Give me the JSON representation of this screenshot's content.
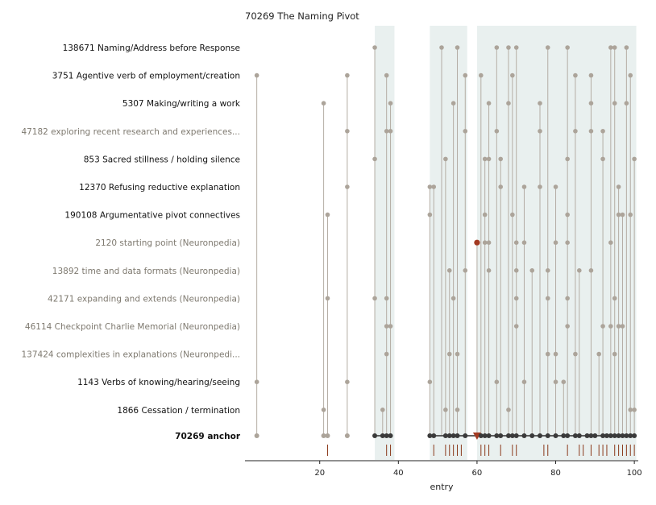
{
  "chart_data": {
    "type": "scatter",
    "title": "70269  The Naming Pivot",
    "xlabel": "entry",
    "ylabel": "",
    "xlim": [
      1,
      101
    ],
    "xticks": [
      20,
      40,
      60,
      80,
      100
    ],
    "grid": false,
    "colors": {
      "row_marker": "#aca49a",
      "stem": "#b4ada4",
      "anchor_marker": "#3a3a3a",
      "highlight": "#a33a22",
      "band": "#e9f0ef",
      "rug": "#8b3a1c",
      "label_dark": "#111111",
      "label_muted": "#7e796f"
    },
    "shaded_ranges": [
      [
        34,
        39
      ],
      [
        48,
        57.5
      ],
      [
        60,
        100.5
      ]
    ],
    "highlight_entry": 60,
    "rug_entries": [
      22,
      37,
      38,
      49,
      52,
      53,
      54,
      55,
      56,
      61,
      62,
      63,
      66,
      69,
      70,
      77,
      78,
      83,
      86,
      87,
      89,
      91,
      92,
      93,
      95,
      96,
      97,
      98,
      99,
      100
    ],
    "anchor": {
      "id": "70269",
      "name": "anchor",
      "entries": [
        4,
        21,
        22,
        27,
        34,
        36,
        37,
        38,
        48,
        49,
        52,
        53,
        54,
        55,
        57,
        60,
        61,
        62,
        63,
        65,
        66,
        68,
        69,
        70,
        72,
        74,
        76,
        78,
        80,
        82,
        83,
        85,
        86,
        88,
        89,
        90,
        92,
        93,
        94,
        95,
        96,
        97,
        98,
        99,
        100
      ]
    },
    "series": [
      {
        "id": "138671",
        "name": "Naming/Address before Response",
        "muted": false,
        "entries": [
          34,
          51,
          55,
          65,
          68,
          70,
          78,
          83,
          94,
          95,
          98
        ]
      },
      {
        "id": "3751",
        "name": "Agentive verb of employment/creation",
        "muted": false,
        "entries": [
          4,
          27,
          37,
          57,
          61,
          69,
          85,
          89,
          99
        ]
      },
      {
        "id": "5307",
        "name": "Making/writing a work",
        "muted": false,
        "entries": [
          21,
          38,
          54,
          63,
          68,
          76,
          89,
          95,
          98
        ]
      },
      {
        "id": "47182",
        "name": "exploring recent research and experiences...",
        "muted": true,
        "entries": [
          27,
          37,
          38,
          57,
          65,
          76,
          85,
          89,
          92
        ]
      },
      {
        "id": "853",
        "name": "Sacred stillness / holding silence",
        "muted": false,
        "entries": [
          34,
          52,
          62,
          63,
          66,
          83,
          92,
          100
        ]
      },
      {
        "id": "12370",
        "name": "Refusing reductive explanation",
        "muted": false,
        "entries": [
          27,
          48,
          49,
          66,
          72,
          76,
          80,
          96
        ]
      },
      {
        "id": "190108",
        "name": "Argumentative pivot connectives",
        "muted": false,
        "entries": [
          22,
          48,
          62,
          69,
          83,
          96,
          97,
          99
        ]
      },
      {
        "id": "2120",
        "name": "starting point (Neuronpedia)",
        "muted": true,
        "entries": [
          60,
          62,
          63,
          70,
          72,
          80,
          83,
          94
        ]
      },
      {
        "id": "13892",
        "name": "time and data formats (Neuronpedia)",
        "muted": true,
        "entries": [
          53,
          57,
          63,
          70,
          74,
          78,
          86,
          89
        ]
      },
      {
        "id": "42171",
        "name": "expanding and extends (Neuronpedia)",
        "muted": true,
        "entries": [
          22,
          34,
          37,
          54,
          70,
          78,
          83,
          95
        ]
      },
      {
        "id": "46114",
        "name": "Checkpoint Charlie Memorial (Neuronpedia)",
        "muted": true,
        "entries": [
          37,
          38,
          70,
          83,
          92,
          94,
          96,
          97
        ]
      },
      {
        "id": "137424",
        "name": "complexities in explanations (Neuronpedi...",
        "muted": true,
        "entries": [
          37,
          53,
          55,
          78,
          80,
          85,
          91,
          95
        ]
      },
      {
        "id": "1143",
        "name": "Verbs of knowing/hearing/seeing",
        "muted": false,
        "entries": [
          4,
          27,
          48,
          65,
          72,
          80,
          82
        ]
      },
      {
        "id": "1866",
        "name": "Cessation / termination",
        "muted": false,
        "entries": [
          21,
          36,
          52,
          55,
          68,
          99,
          100
        ]
      }
    ]
  }
}
